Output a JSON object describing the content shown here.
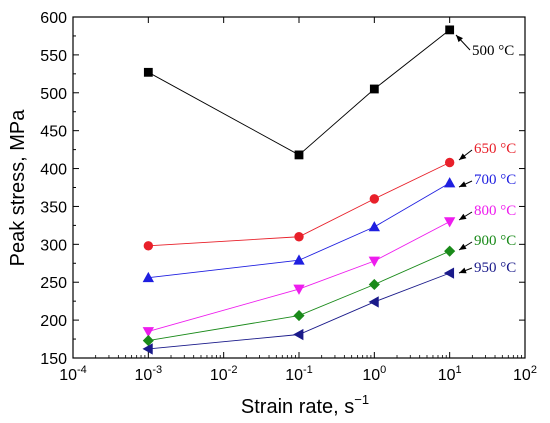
{
  "chart_data": {
    "type": "scatter",
    "xscale": "log",
    "xlim": [
      0.0001,
      100
    ],
    "ylim": [
      150,
      600
    ],
    "xlabel_base": "Strain rate, s",
    "xlabel_exp": "−1",
    "ylabel": "Peak stress, MPa",
    "x_ticks": [
      {
        "value": 0.0001,
        "base": "10",
        "exp": "-4"
      },
      {
        "value": 0.001,
        "base": "10",
        "exp": "-3"
      },
      {
        "value": 0.01,
        "base": "10",
        "exp": "-2"
      },
      {
        "value": 0.1,
        "base": "10",
        "exp": "-1"
      },
      {
        "value": 1,
        "base": "10",
        "exp": "0"
      },
      {
        "value": 10,
        "base": "10",
        "exp": "1"
      },
      {
        "value": 100,
        "base": "10",
        "exp": "2"
      }
    ],
    "y_ticks": [
      150,
      200,
      250,
      300,
      350,
      400,
      450,
      500,
      550,
      600
    ],
    "x": [
      0.001,
      0.1,
      1,
      10
    ],
    "series": [
      {
        "name": "500 °C",
        "values": [
          527,
          418,
          505,
          583
        ],
        "color": "#000000",
        "marker": "square"
      },
      {
        "name": "650 °C",
        "values": [
          298,
          310,
          360,
          408
        ],
        "color": "#e8202a",
        "marker": "circle"
      },
      {
        "name": "700 °C",
        "values": [
          256,
          279,
          323,
          381
        ],
        "color": "#1f1fe0",
        "marker": "triangle-up"
      },
      {
        "name": "800 °C",
        "values": [
          185,
          241,
          278,
          330
        ],
        "color": "#ee1cee",
        "marker": "triangle-down"
      },
      {
        "name": "900 °C",
        "values": [
          173,
          206,
          247,
          291
        ],
        "color": "#1a8a1a",
        "marker": "diamond"
      },
      {
        "name": "950 °C",
        "values": [
          162,
          181,
          224,
          262
        ],
        "color": "#1a1a8a",
        "marker": "triangle-left"
      }
    ]
  }
}
